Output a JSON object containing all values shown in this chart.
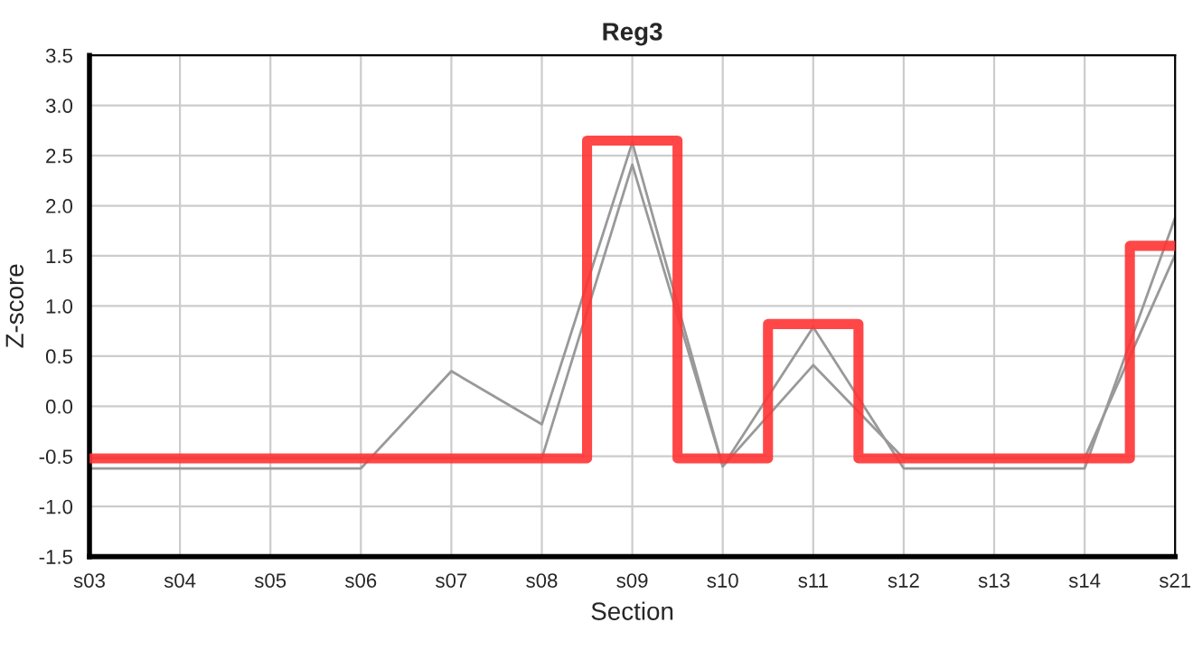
{
  "chart_data": {
    "type": "line",
    "title": "Reg3",
    "xlabel": "Section",
    "ylabel": "Z-score",
    "categories": [
      "s03",
      "s04",
      "s05",
      "s06",
      "s07",
      "s08",
      "s09",
      "s10",
      "s11",
      "s12",
      "s13",
      "s14",
      "s21"
    ],
    "series": [
      {
        "color": "#999999",
        "values": [
          -0.62,
          -0.62,
          -0.62,
          -0.62,
          0.35,
          -0.18,
          2.63,
          -0.6,
          0.79,
          -0.62,
          -0.62,
          -0.62,
          1.88
        ]
      },
      {
        "color": "#999999",
        "values": [
          -0.52,
          -0.52,
          -0.52,
          -0.52,
          -0.52,
          -0.52,
          2.41,
          -0.6,
          0.41,
          -0.52,
          -0.52,
          -0.52,
          1.51
        ]
      },
      {
        "type": "step",
        "color": "#ff3333",
        "values": [
          -0.52,
          -0.52,
          -0.52,
          -0.52,
          -0.52,
          -0.52,
          2.65,
          -0.52,
          0.82,
          -0.52,
          -0.52,
          -0.52,
          1.6
        ]
      }
    ],
    "ylim": [
      -1.5,
      3.5
    ],
    "yticks": [
      -1.5,
      {
        "value": -1,
        "label": "-1.0"
      },
      -0.5,
      {
        "value": 0,
        "label": "0.0"
      },
      0.5,
      {
        "value": 1,
        "label": "1.0"
      },
      1.5,
      {
        "value": 2,
        "label": "2.0"
      },
      2.5,
      {
        "value": 3,
        "label": "3.0"
      },
      3.5
    ],
    "grid": true
  }
}
